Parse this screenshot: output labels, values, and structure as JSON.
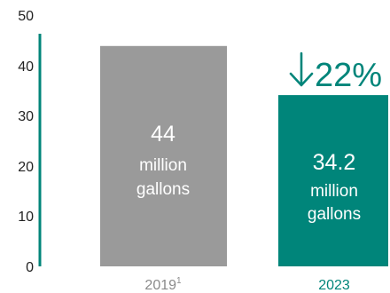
{
  "chart_data": {
    "type": "bar",
    "categories": [
      "2019",
      "2023"
    ],
    "category_superscripts": [
      "1",
      ""
    ],
    "values": [
      44,
      34.2
    ],
    "value_labels": [
      {
        "value": "44",
        "lines": [
          "million",
          "gallons"
        ]
      },
      {
        "value": "34.2",
        "lines": [
          "million",
          "gallons"
        ]
      }
    ],
    "ylim": [
      0,
      50
    ],
    "yticks": [
      "0",
      "10",
      "20",
      "30",
      "40",
      "50"
    ],
    "grid": false,
    "colors": {
      "bars": [
        "#9a9a9a",
        "#00857a"
      ],
      "axis": "#00857a",
      "category_labels": [
        "#8a8a8a",
        "#00857a"
      ]
    },
    "annotation": {
      "text": "22%",
      "icon": "arrow-down-icon",
      "color": "#00857a"
    }
  }
}
